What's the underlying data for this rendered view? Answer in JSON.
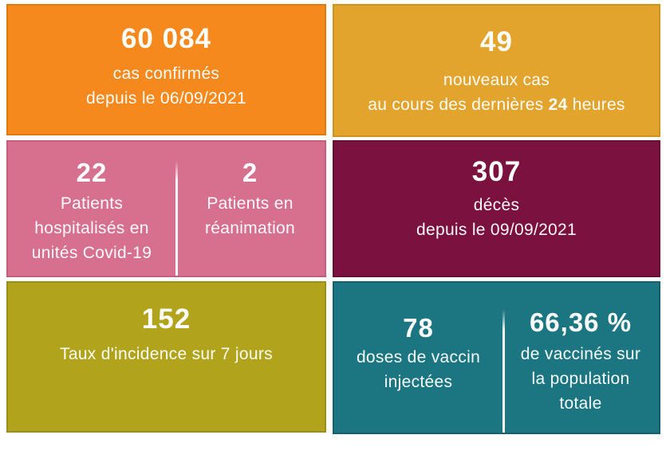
{
  "colors": {
    "page_bg": "#FFFFFF",
    "text": "#FFFFFF",
    "divider": "#FFFFFF",
    "orange_bg": "#F6891E",
    "orange_border": "#E2790F",
    "gold_bg": "#E2A42C",
    "gold_border": "#CD9220",
    "pink_bg": "#D7708F",
    "pink_border": "#C4607E",
    "maroon_bg": "#7A113E",
    "maroon_border": "#660D33",
    "olive_bg": "#B2A31D",
    "olive_border": "#9C8F16",
    "teal_bg": "#1C7682",
    "teal_border": "#14606C"
  },
  "tiles": {
    "confirmed": {
      "value": "60 084",
      "label": "cas confirmés",
      "since": "depuis le 06/09/2021"
    },
    "new_cases": {
      "value": "49",
      "label": "nouveaux cas",
      "period_prefix": "au cours des dernières ",
      "period_bold": "24",
      "period_suffix": " heures"
    },
    "hospitalised": {
      "value": "22",
      "lines": [
        "Patients",
        "hospitalisés en",
        "unités Covid-19"
      ]
    },
    "icu": {
      "value": "2",
      "lines": [
        "Patients en",
        "réanimation"
      ]
    },
    "deaths": {
      "value": "307",
      "label": "décès",
      "since": "depuis le 09/09/2021"
    },
    "incidence": {
      "value": "152",
      "label": "Taux d'incidence sur 7 jours"
    },
    "doses": {
      "value": "78",
      "lines": [
        "doses de vaccin",
        "injectées"
      ]
    },
    "vaccinated": {
      "value": "66,36 %",
      "lines": [
        "de vaccinés sur",
        "la population",
        "totale"
      ]
    }
  },
  "chart_data": {
    "type": "table",
    "indicators": [
      {
        "label": "cas confirmés depuis le 06/09/2021",
        "value": 60084
      },
      {
        "label": "nouveaux cas au cours des dernières 24 heures",
        "value": 49
      },
      {
        "label": "Patients hospitalisés en unités Covid-19",
        "value": 22
      },
      {
        "label": "Patients en réanimation",
        "value": 2
      },
      {
        "label": "décès depuis le 09/09/2021",
        "value": 307
      },
      {
        "label": "Taux d'incidence sur 7 jours",
        "value": 152
      },
      {
        "label": "doses de vaccin injectées",
        "value": 78
      },
      {
        "label": "de vaccinés sur la population totale",
        "value": 66.36,
        "unit": "%"
      }
    ]
  }
}
